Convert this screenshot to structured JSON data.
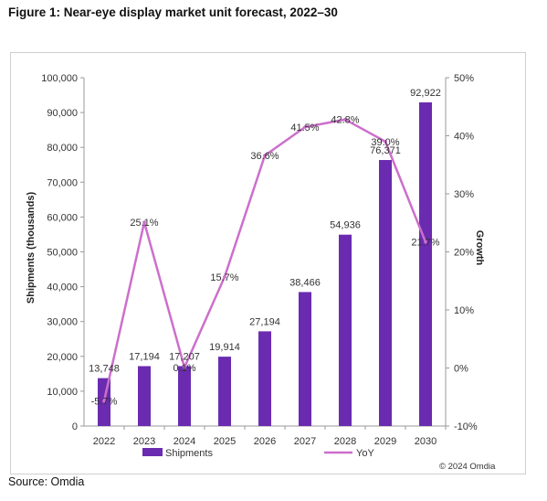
{
  "figure": {
    "title": "Figure 1: Near-eye display market unit forecast, 2022–30",
    "source": "Source: Omdia",
    "copyright": "© 2024 Omdia"
  },
  "chart_data": {
    "type": "bar",
    "categories": [
      "2022",
      "2023",
      "2024",
      "2025",
      "2026",
      "2027",
      "2028",
      "2029",
      "2030"
    ],
    "series": [
      {
        "name": "Shipments",
        "type": "bar",
        "axis": "left",
        "color": "#6a2bb0",
        "values": [
          13748,
          17194,
          17207,
          19914,
          27194,
          38466,
          54936,
          76371,
          92922
        ],
        "labels": [
          "13,748",
          "17,194",
          "17,207",
          "19,914",
          "27,194",
          "38,466",
          "54,936",
          "76,371",
          "92,922"
        ]
      },
      {
        "name": "YoY",
        "type": "line",
        "axis": "right",
        "color": "#cc6fcb",
        "values": [
          -5.7,
          25.1,
          0.1,
          15.7,
          36.6,
          41.5,
          42.8,
          39.0,
          21.7
        ],
        "labels": [
          "-5.7%",
          "25.1%",
          "0.1%",
          "15.7%",
          "36.6%",
          "41.5%",
          "42.8%",
          "39.0%",
          "21.7%"
        ]
      }
    ],
    "ylabel": "Shipments (thousands)",
    "y2label": "Growth",
    "ylim": [
      0,
      100000
    ],
    "y2lim": [
      -10,
      50
    ],
    "yticks": [
      "0",
      "10,000",
      "20,000",
      "30,000",
      "40,000",
      "50,000",
      "60,000",
      "70,000",
      "80,000",
      "90,000",
      "100,000"
    ],
    "y2ticks": [
      "-10%",
      "0%",
      "10%",
      "20%",
      "30%",
      "40%",
      "50%"
    ],
    "grid": false,
    "legend": "bottom"
  }
}
